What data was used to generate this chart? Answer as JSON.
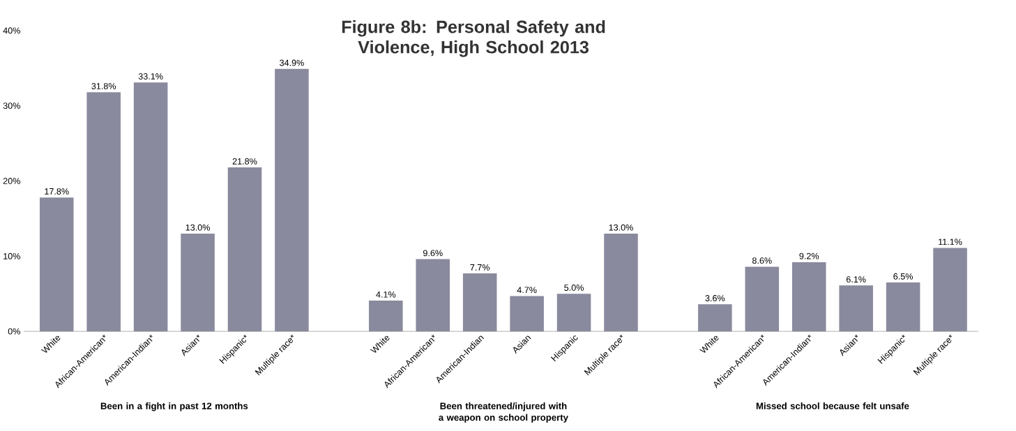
{
  "chart_data": {
    "type": "bar",
    "title": "Figure 8b: Personal Safety and Violence, High School 2013",
    "categories": [
      "White",
      "African-American*",
      "American-Indian*",
      "Asian*",
      "Hispanic*",
      "Multiple race*",
      null,
      "White",
      "African-American*",
      "American-Indian",
      "Asian",
      "Hispanic",
      "Multiple race*",
      null,
      "White",
      "African-American*",
      "American-Indian*",
      "Asian*",
      "Hispanic*",
      "Multiple race*"
    ],
    "values": [
      17.8,
      31.8,
      33.1,
      13.0,
      21.8,
      34.9,
      null,
      4.1,
      9.6,
      7.7,
      4.7,
      5.0,
      13.0,
      null,
      3.6,
      8.6,
      9.2,
      6.1,
      6.5,
      11.1
    ],
    "value_labels": [
      "17.8%",
      "31.8%",
      "33.1%",
      "13.0%",
      "21.8%",
      "34.9%",
      null,
      "4.1%",
      "9.6%",
      "7.7%",
      "4.7%",
      "5.0%",
      "13.0%",
      null,
      "3.6%",
      "8.6%",
      "9.2%",
      "6.1%",
      "6.5%",
      "11.1%"
    ],
    "color": "#8a8a9e",
    "ylim": [
      0,
      40
    ],
    "yticks": [
      {
        "value": 0,
        "label": "0%"
      },
      {
        "value": 10,
        "label": "10%"
      },
      {
        "value": 20,
        "label": "20%"
      },
      {
        "value": 30,
        "label": "30%"
      },
      {
        "value": 40,
        "label": "40%"
      }
    ],
    "annotations": [
      "Been in a fight in past 12 months",
      "Been threatened/injured with a weapon on school property",
      "Missed school because felt unsafe"
    ]
  }
}
